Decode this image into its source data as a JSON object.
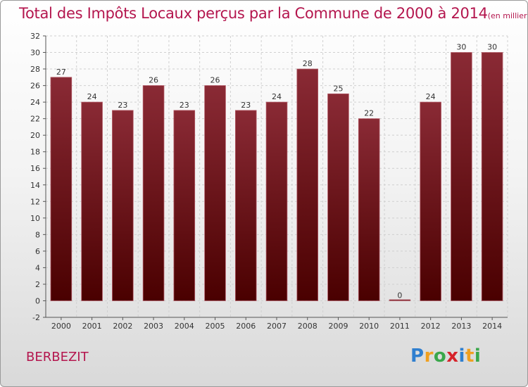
{
  "title": "Total des Impôts Locaux perçus par la Commune de 2000 à 2014",
  "title_unit": "(en milliers d'€)",
  "commune": "BERBEZIT",
  "logo": {
    "letters": [
      "P",
      "r",
      "o",
      "x",
      "i",
      "t",
      "i"
    ],
    "colors": [
      "#2f7fcf",
      "#f0a020",
      "#3aa74b",
      "#d6232a",
      "#2f7fcf",
      "#f0a020",
      "#3aa74b"
    ]
  },
  "chart_data": {
    "type": "bar",
    "title": "Total des Impôts Locaux perçus par la Commune de 2000 à 2014",
    "ylabel": "",
    "xlabel": "",
    "categories": [
      "2000",
      "2001",
      "2002",
      "2003",
      "2004",
      "2005",
      "2006",
      "2007",
      "2008",
      "2009",
      "2010",
      "2011",
      "2012",
      "2013",
      "2014"
    ],
    "values": [
      27,
      24,
      23,
      26,
      23,
      26,
      23,
      24,
      28,
      25,
      22,
      0,
      24,
      30,
      30
    ],
    "ylim": [
      -2,
      32
    ],
    "yticks": [
      -2,
      0,
      2,
      4,
      6,
      8,
      10,
      12,
      14,
      16,
      18,
      20,
      22,
      24,
      26,
      28,
      30,
      32
    ],
    "grid": true,
    "bar_color_top": "#8a2a35",
    "bar_color_bottom": "#4a0000"
  }
}
